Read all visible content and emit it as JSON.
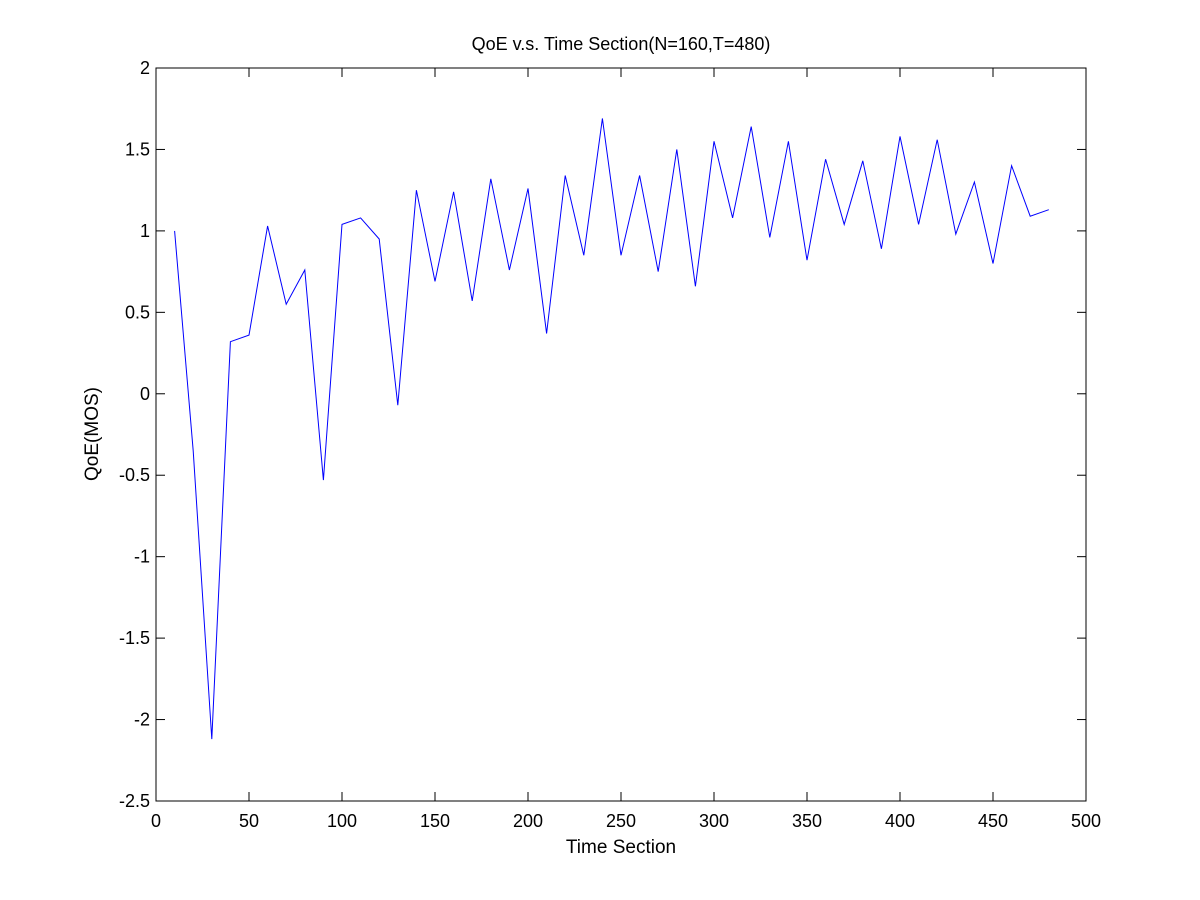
{
  "chart_data": {
    "type": "line",
    "title": "QoE v.s. Time Section(N=160,T=480)",
    "xlabel": "Time Section",
    "ylabel": "QoE(MOS)",
    "xlim": [
      0,
      500
    ],
    "ylim": [
      -2.5,
      2
    ],
    "xticks": [
      0,
      50,
      100,
      150,
      200,
      250,
      300,
      350,
      400,
      450,
      500
    ],
    "yticks": [
      -2.5,
      -2,
      -1.5,
      -1,
      -0.5,
      0,
      0.5,
      1,
      1.5,
      2
    ],
    "xtick_labels": [
      "0",
      "50",
      "100",
      "150",
      "200",
      "250",
      "300",
      "350",
      "400",
      "450",
      "500"
    ],
    "ytick_labels": [
      "-2.5",
      "-2",
      "-1.5",
      "-1",
      "-0.5",
      "0",
      "0.5",
      "1",
      "1.5",
      "2"
    ],
    "grid": false,
    "series": [
      {
        "color": "#0000ff",
        "x": [
          10,
          20,
          30,
          40,
          50,
          60,
          70,
          80,
          90,
          100,
          110,
          120,
          130,
          140,
          150,
          160,
          170,
          180,
          190,
          200,
          210,
          220,
          230,
          240,
          250,
          260,
          270,
          280,
          290,
          300,
          310,
          320,
          330,
          340,
          350,
          360,
          370,
          380,
          390,
          400,
          410,
          420,
          430,
          440,
          450,
          460,
          470,
          480
        ],
        "y": [
          1.0,
          -0.35,
          -2.12,
          0.32,
          0.36,
          1.03,
          0.55,
          0.76,
          -0.53,
          1.04,
          1.08,
          0.95,
          -0.07,
          1.25,
          0.69,
          1.24,
          0.57,
          1.32,
          0.76,
          1.26,
          0.37,
          1.34,
          0.85,
          1.69,
          0.85,
          1.34,
          0.75,
          1.5,
          0.66,
          1.55,
          1.08,
          1.64,
          0.96,
          1.55,
          0.82,
          1.44,
          1.04,
          1.43,
          0.89,
          1.58,
          1.04,
          1.56,
          0.98,
          1.3,
          0.8,
          1.4,
          1.09,
          1.13
        ]
      }
    ]
  }
}
